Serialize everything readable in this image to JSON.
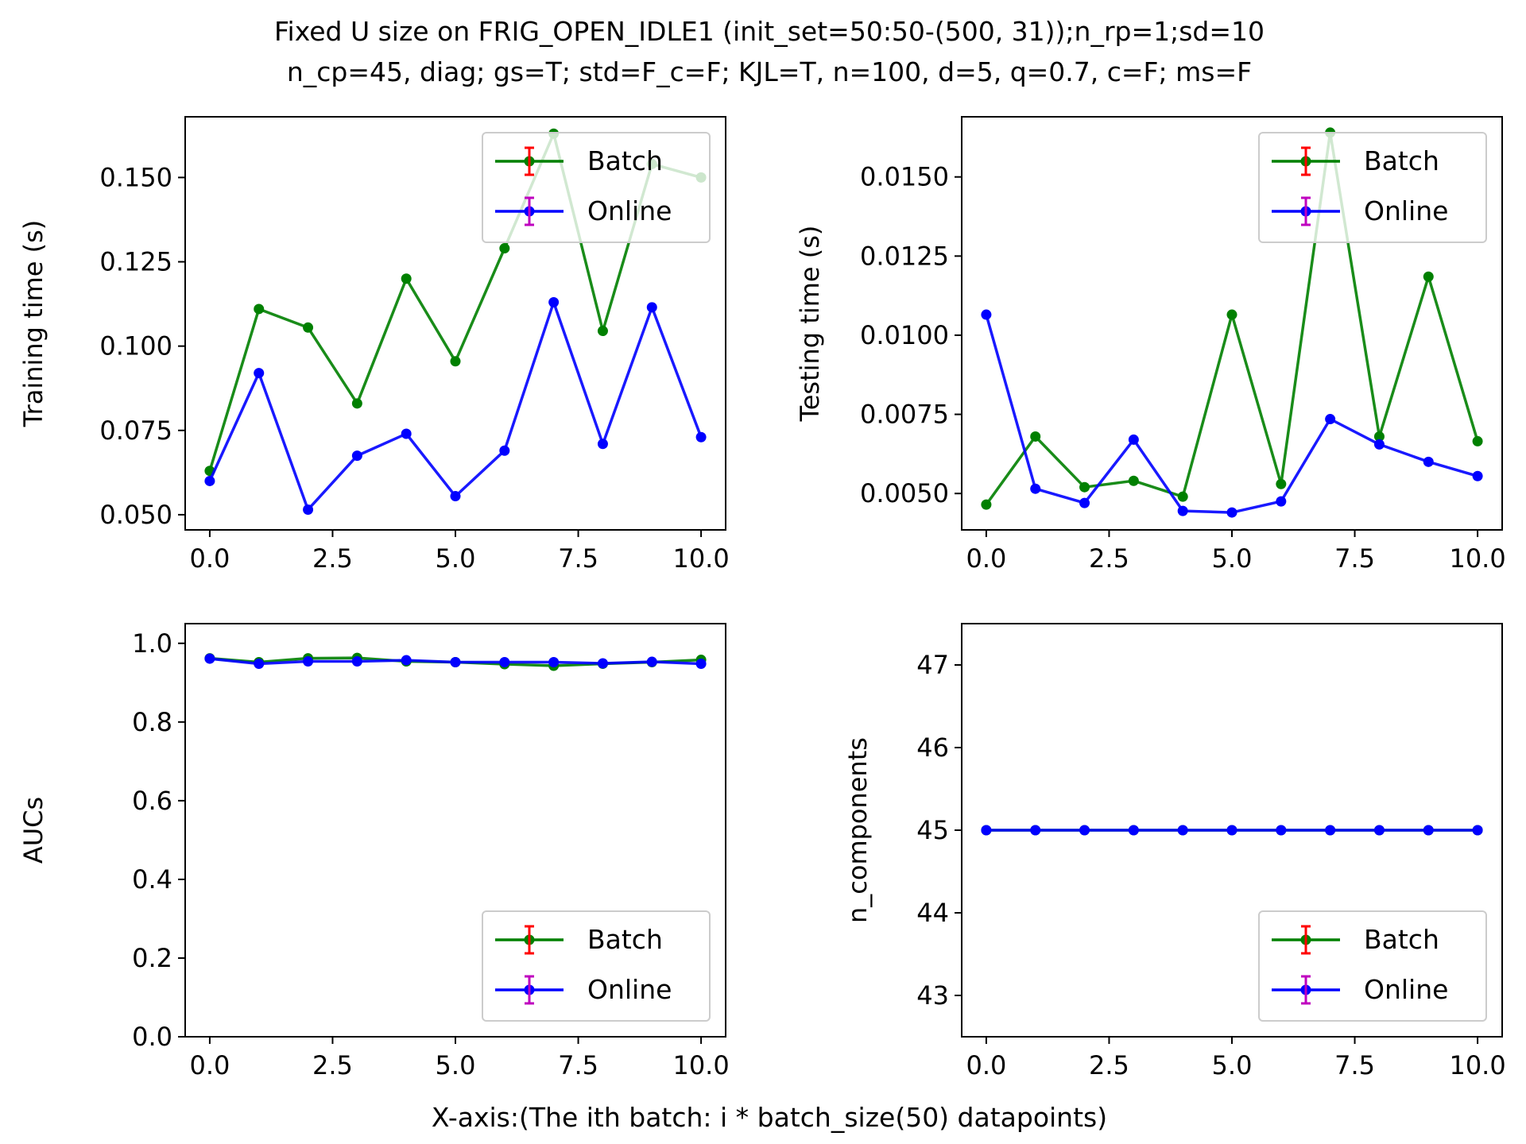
{
  "figure": {
    "title_line1": "Fixed U size on FRIG_OPEN_IDLE1 (init_set=50:50-(500, 31));n_rp=1;sd=10",
    "title_line2": "n_cp=45, diag; gs=T; std=F_c=F; KJL=T, n=100, d=5, q=0.7, c=F; ms=F",
    "xlabel": "X-axis:(The ith batch: i * batch_size(50) datapoints)"
  },
  "colors": {
    "batch": "#008000",
    "online": "#0000ff",
    "batch_err": "#ff0000",
    "online_err": "#bf00bf"
  },
  "chart_data": [
    {
      "type": "line",
      "ylabel": "Training time (s)",
      "x": [
        0,
        1,
        2,
        3,
        4,
        5,
        6,
        7,
        8,
        9,
        10
      ],
      "xlim": [
        -0.5,
        10.5
      ],
      "ylim": [
        0.0455,
        0.168
      ],
      "xticks": [
        0,
        2.5,
        5,
        7.5,
        10
      ],
      "xtick_labels": [
        "0.0",
        "2.5",
        "5.0",
        "7.5",
        "10.0"
      ],
      "yticks": [
        0.05,
        0.075,
        0.1,
        0.125,
        0.15
      ],
      "ytick_labels": [
        "0.050",
        "0.075",
        "0.100",
        "0.125",
        "0.150"
      ],
      "legend_loc": "upper right",
      "series": [
        {
          "name": "Batch",
          "color": "#008000",
          "values": [
            0.063,
            0.111,
            0.1055,
            0.083,
            0.12,
            0.0955,
            0.129,
            0.163,
            0.1045,
            0.154,
            0.15
          ]
        },
        {
          "name": "Online",
          "color": "#0000ff",
          "values": [
            0.06,
            0.092,
            0.0515,
            0.0675,
            0.074,
            0.0555,
            0.069,
            0.113,
            0.071,
            0.1115,
            0.073
          ]
        }
      ]
    },
    {
      "type": "line",
      "ylabel": "Testing time (s)",
      "x": [
        0,
        1,
        2,
        3,
        4,
        5,
        6,
        7,
        8,
        9,
        10
      ],
      "xlim": [
        -0.5,
        10.5
      ],
      "ylim": [
        0.00385,
        0.0169
      ],
      "xticks": [
        0,
        2.5,
        5,
        7.5,
        10
      ],
      "xtick_labels": [
        "0.0",
        "2.5",
        "5.0",
        "7.5",
        "10.0"
      ],
      "yticks": [
        0.005,
        0.0075,
        0.01,
        0.0125,
        0.015
      ],
      "ytick_labels": [
        "0.0050",
        "0.0075",
        "0.0100",
        "0.0125",
        "0.0150"
      ],
      "legend_loc": "upper right",
      "series": [
        {
          "name": "Batch",
          "color": "#008000",
          "values": [
            0.00465,
            0.0068,
            0.0052,
            0.0054,
            0.0049,
            0.01065,
            0.0053,
            0.0164,
            0.0068,
            0.01185,
            0.00665
          ]
        },
        {
          "name": "Online",
          "color": "#0000ff",
          "values": [
            0.01065,
            0.00515,
            0.0047,
            0.0067,
            0.00445,
            0.0044,
            0.00475,
            0.00735,
            0.00655,
            0.006,
            0.00555
          ]
        }
      ]
    },
    {
      "type": "line",
      "ylabel": "AUCs",
      "x": [
        0,
        1,
        2,
        3,
        4,
        5,
        6,
        7,
        8,
        9,
        10
      ],
      "xlim": [
        -0.5,
        10.5
      ],
      "ylim": [
        0.0,
        1.05
      ],
      "xticks": [
        0,
        2.5,
        5,
        7.5,
        10
      ],
      "xtick_labels": [
        "0.0",
        "2.5",
        "5.0",
        "7.5",
        "10.0"
      ],
      "yticks": [
        0,
        0.2,
        0.4,
        0.6,
        0.8,
        1.0
      ],
      "ytick_labels": [
        "0.0",
        "0.2",
        "0.4",
        "0.6",
        "0.8",
        "1.0"
      ],
      "legend_loc": "lower right",
      "series": [
        {
          "name": "Batch",
          "color": "#008000",
          "values": [
            0.962,
            0.952,
            0.962,
            0.963,
            0.954,
            0.952,
            0.947,
            0.943,
            0.948,
            0.952,
            0.958
          ]
        },
        {
          "name": "Online",
          "color": "#0000ff",
          "values": [
            0.961,
            0.948,
            0.954,
            0.954,
            0.957,
            0.952,
            0.952,
            0.952,
            0.949,
            0.953,
            0.948
          ]
        }
      ]
    },
    {
      "type": "line",
      "ylabel": "n_components",
      "x": [
        0,
        1,
        2,
        3,
        4,
        5,
        6,
        7,
        8,
        9,
        10
      ],
      "xlim": [
        -0.5,
        10.5
      ],
      "ylim": [
        42.5,
        47.5
      ],
      "xticks": [
        0,
        2.5,
        5,
        7.5,
        10
      ],
      "xtick_labels": [
        "0.0",
        "2.5",
        "5.0",
        "7.5",
        "10.0"
      ],
      "yticks": [
        43,
        44,
        45,
        46,
        47
      ],
      "ytick_labels": [
        "43",
        "44",
        "45",
        "46",
        "47"
      ],
      "legend_loc": "lower right",
      "series": [
        {
          "name": "Batch",
          "color": "#008000",
          "values": [
            45,
            45,
            45,
            45,
            45,
            45,
            45,
            45,
            45,
            45,
            45
          ]
        },
        {
          "name": "Online",
          "color": "#0000ff",
          "values": [
            45,
            45,
            45,
            45,
            45,
            45,
            45,
            45,
            45,
            45,
            45
          ]
        }
      ]
    }
  ]
}
